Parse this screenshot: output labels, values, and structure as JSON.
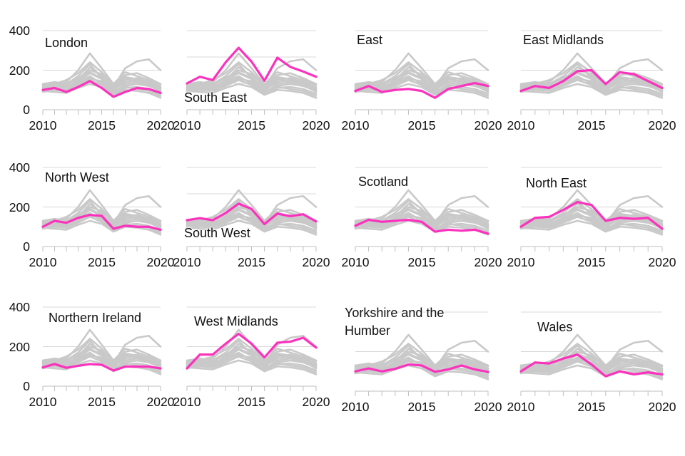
{
  "colors": {
    "highlight_line": "#fb32bd",
    "background_line": "#c9c9c9",
    "gridline": "#d8d8d8",
    "axis_line": "#bfbfbf",
    "text": "#111111",
    "background": "#ffffff"
  },
  "x_axis": {
    "visible_tick_labels": [
      "2010",
      "2015",
      "2020"
    ],
    "minor_ticks_every_year": true
  },
  "y_axis": {
    "visible_tick_labels": [
      "400",
      "200",
      "0"
    ],
    "labels_shown_on_first_column_only": true,
    "gridline_step": 200
  },
  "chart_data": {
    "type": "line",
    "x": [
      2010,
      2011,
      2012,
      2013,
      2014,
      2015,
      2016,
      2017,
      2018,
      2019,
      2020
    ],
    "background_series_axis_max": 400,
    "panels": [
      {
        "title": "London",
        "title_position": "top",
        "axis_max": 400,
        "y_labels_visible": true,
        "highlight": [
          100,
          110,
          90,
          115,
          145,
          110,
          65,
          90,
          110,
          105,
          85
        ]
      },
      {
        "title": "South East",
        "title_position": "bottom",
        "axis_max": 600,
        "y_labels_visible": false,
        "highlight": [
          200,
          250,
          225,
          360,
          470,
          365,
          220,
          395,
          325,
          290,
          250
        ]
      },
      {
        "title": "East",
        "title_position": "top",
        "axis_max": 400,
        "y_labels_visible": false,
        "highlight": [
          95,
          120,
          90,
          100,
          105,
          95,
          60,
          105,
          120,
          135,
          120
        ]
      },
      {
        "title": "East Midlands",
        "title_position": "top",
        "axis_max": 400,
        "y_labels_visible": false,
        "highlight": [
          95,
          120,
          110,
          145,
          195,
          200,
          130,
          190,
          180,
          145,
          110
        ]
      },
      {
        "title": "North West",
        "title_position": "top",
        "axis_max": 400,
        "y_labels_visible": true,
        "highlight": [
          100,
          130,
          120,
          145,
          160,
          155,
          90,
          105,
          100,
          100,
          85
        ]
      },
      {
        "title": "South West",
        "title_position": "bottom",
        "axis_max": 600,
        "y_labels_visible": false,
        "highlight": [
          200,
          215,
          200,
          255,
          325,
          285,
          170,
          250,
          230,
          245,
          190
        ]
      },
      {
        "title": "Scotland",
        "title_position": "top",
        "axis_max": 400,
        "y_labels_visible": false,
        "highlight": [
          105,
          135,
          125,
          130,
          135,
          125,
          75,
          85,
          80,
          85,
          65
        ]
      },
      {
        "title": "North East",
        "title_position": "top",
        "axis_max": 400,
        "y_labels_visible": false,
        "highlight": [
          100,
          145,
          150,
          185,
          225,
          210,
          130,
          145,
          140,
          145,
          90
        ]
      },
      {
        "title": "Northern Ireland",
        "title_position": "top",
        "axis_max": 400,
        "y_labels_visible": true,
        "highlight": [
          95,
          112,
          93,
          103,
          112,
          108,
          79,
          99,
          99,
          99,
          90
        ]
      },
      {
        "title": "West Midlands",
        "title_position": "top",
        "axis_max": 400,
        "y_labels_visible": false,
        "highlight": [
          90,
          160,
          160,
          215,
          265,
          215,
          145,
          220,
          225,
          245,
          195
        ]
      },
      {
        "title": "Yorkshire and the Humber",
        "title_position": "top",
        "axis_max": 400,
        "y_labels_visible": false,
        "highlight": [
          100,
          115,
          100,
          113,
          135,
          130,
          98,
          110,
          130,
          110,
          97
        ]
      },
      {
        "title": "Wales",
        "title_position": "top",
        "axis_max": 400,
        "y_labels_visible": false,
        "highlight": [
          100,
          145,
          140,
          165,
          185,
          135,
          75,
          100,
          85,
          95,
          85
        ]
      }
    ],
    "background_series": [
      [
        110,
        120,
        140,
        200,
        285,
        210,
        130,
        190,
        170,
        150,
        125
      ],
      [
        105,
        115,
        125,
        160,
        190,
        160,
        115,
        210,
        245,
        255,
        200
      ],
      [
        120,
        130,
        150,
        185,
        240,
        190,
        125,
        175,
        185,
        160,
        130
      ],
      [
        100,
        125,
        110,
        150,
        215,
        170,
        100,
        140,
        150,
        130,
        105
      ],
      [
        130,
        140,
        130,
        170,
        230,
        160,
        110,
        160,
        140,
        145,
        110
      ],
      [
        95,
        105,
        100,
        130,
        160,
        140,
        90,
        120,
        130,
        120,
        95
      ],
      [
        115,
        120,
        115,
        145,
        185,
        155,
        105,
        150,
        160,
        140,
        115
      ],
      [
        90,
        100,
        95,
        120,
        150,
        125,
        80,
        110,
        115,
        105,
        80
      ],
      [
        125,
        135,
        125,
        160,
        200,
        180,
        120,
        165,
        155,
        135,
        100
      ],
      [
        100,
        110,
        105,
        140,
        170,
        130,
        85,
        130,
        140,
        125,
        90
      ],
      [
        110,
        105,
        120,
        135,
        155,
        145,
        95,
        115,
        105,
        95,
        70
      ],
      [
        95,
        90,
        85,
        110,
        130,
        115,
        75,
        100,
        95,
        85,
        60
      ]
    ]
  }
}
